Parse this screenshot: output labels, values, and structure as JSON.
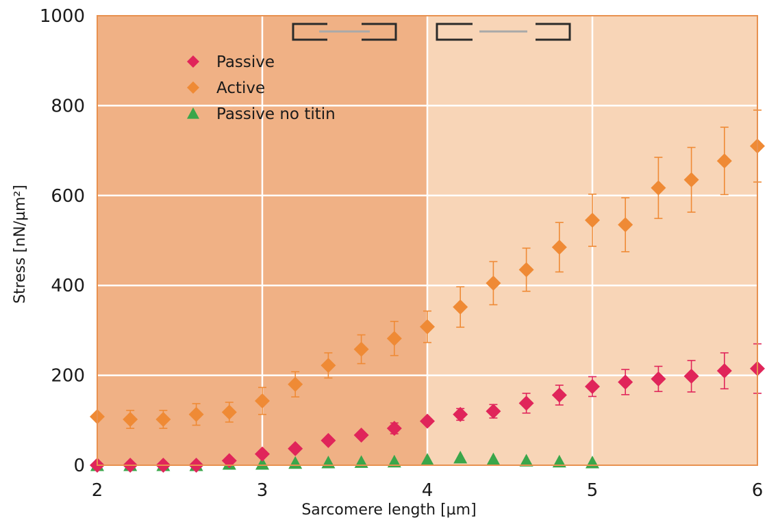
{
  "chart_data": {
    "type": "scatter",
    "title": "",
    "xlabel": "Sarcomere  length [µm]",
    "ylabel": "Stress [nN/µm²]",
    "xlim": [
      2,
      6
    ],
    "ylim": [
      0,
      1000
    ],
    "x_ticks": [
      "2",
      "3",
      "4",
      "5",
      "6"
    ],
    "y_ticks": [
      "0",
      "200",
      "400",
      "600",
      "800",
      "1000"
    ],
    "grid": true,
    "legend_position": "top-left",
    "shaded_regions": [
      {
        "x_from": 2,
        "x_to": 4,
        "color": "#f0b185"
      },
      {
        "x_from": 4,
        "x_to": 6,
        "color": "#f8d5b7"
      }
    ],
    "border_color": "#e8914f",
    "series": [
      {
        "name": "Passive",
        "marker": "diamond",
        "color": "#e0255a",
        "points": [
          {
            "x": 2.0,
            "y": 0,
            "err": 0
          },
          {
            "x": 2.2,
            "y": 0,
            "err": 0
          },
          {
            "x": 2.4,
            "y": 0,
            "err": 0
          },
          {
            "x": 2.6,
            "y": 0,
            "err": 0
          },
          {
            "x": 2.8,
            "y": 10,
            "err": 0
          },
          {
            "x": 3.0,
            "y": 25,
            "err": 0
          },
          {
            "x": 3.2,
            "y": 37,
            "err": 0
          },
          {
            "x": 3.4,
            "y": 55,
            "err": 0
          },
          {
            "x": 3.6,
            "y": 67,
            "err": 0
          },
          {
            "x": 3.8,
            "y": 82,
            "err": 12
          },
          {
            "x": 4.0,
            "y": 98,
            "err": 0
          },
          {
            "x": 4.2,
            "y": 113,
            "err": 13
          },
          {
            "x": 4.4,
            "y": 120,
            "err": 15
          },
          {
            "x": 4.6,
            "y": 138,
            "err": 22
          },
          {
            "x": 4.8,
            "y": 156,
            "err": 22
          },
          {
            "x": 5.0,
            "y": 175,
            "err": 22
          },
          {
            "x": 5.2,
            "y": 185,
            "err": 28
          },
          {
            "x": 5.4,
            "y": 192,
            "err": 28
          },
          {
            "x": 5.6,
            "y": 198,
            "err": 35
          },
          {
            "x": 5.8,
            "y": 210,
            "err": 40
          },
          {
            "x": 6.0,
            "y": 215,
            "err": 55
          }
        ]
      },
      {
        "name": "Active",
        "marker": "diamond",
        "color": "#ef8a35",
        "points": [
          {
            "x": 2.0,
            "y": 108,
            "err": 0
          },
          {
            "x": 2.2,
            "y": 102,
            "err": 20
          },
          {
            "x": 2.4,
            "y": 102,
            "err": 20
          },
          {
            "x": 2.6,
            "y": 113,
            "err": 24
          },
          {
            "x": 2.8,
            "y": 118,
            "err": 22
          },
          {
            "x": 3.0,
            "y": 143,
            "err": 30
          },
          {
            "x": 3.2,
            "y": 180,
            "err": 28
          },
          {
            "x": 3.4,
            "y": 222,
            "err": 28
          },
          {
            "x": 3.6,
            "y": 258,
            "err": 32
          },
          {
            "x": 3.8,
            "y": 282,
            "err": 38
          },
          {
            "x": 4.0,
            "y": 308,
            "err": 35
          },
          {
            "x": 4.2,
            "y": 352,
            "err": 45
          },
          {
            "x": 4.4,
            "y": 405,
            "err": 48
          },
          {
            "x": 4.6,
            "y": 435,
            "err": 48
          },
          {
            "x": 4.8,
            "y": 485,
            "err": 55
          },
          {
            "x": 5.0,
            "y": 545,
            "err": 58
          },
          {
            "x": 5.2,
            "y": 535,
            "err": 60
          },
          {
            "x": 5.4,
            "y": 617,
            "err": 68
          },
          {
            "x": 5.6,
            "y": 635,
            "err": 72
          },
          {
            "x": 5.8,
            "y": 677,
            "err": 75
          },
          {
            "x": 6.0,
            "y": 710,
            "err": 80
          }
        ]
      },
      {
        "name": "Passive no titin",
        "marker": "triangle",
        "color": "#3aa64a",
        "points": [
          {
            "x": 2.0,
            "y": 0,
            "err": 0
          },
          {
            "x": 2.2,
            "y": 0,
            "err": 0
          },
          {
            "x": 2.4,
            "y": 0,
            "err": 0
          },
          {
            "x": 2.6,
            "y": 0,
            "err": 0
          },
          {
            "x": 2.8,
            "y": 3,
            "err": 0
          },
          {
            "x": 3.0,
            "y": 3,
            "err": 0
          },
          {
            "x": 3.2,
            "y": 5,
            "err": 0
          },
          {
            "x": 3.4,
            "y": 6,
            "err": 0
          },
          {
            "x": 3.6,
            "y": 7,
            "err": 0
          },
          {
            "x": 3.8,
            "y": 8,
            "err": 0
          },
          {
            "x": 4.0,
            "y": 12,
            "err": 0
          },
          {
            "x": 4.2,
            "y": 17,
            "err": 0
          },
          {
            "x": 4.4,
            "y": 13,
            "err": 0
          },
          {
            "x": 4.6,
            "y": 10,
            "err": 0
          },
          {
            "x": 4.8,
            "y": 8,
            "err": 0
          },
          {
            "x": 5.0,
            "y": 6,
            "err": 0
          }
        ]
      }
    ]
  }
}
